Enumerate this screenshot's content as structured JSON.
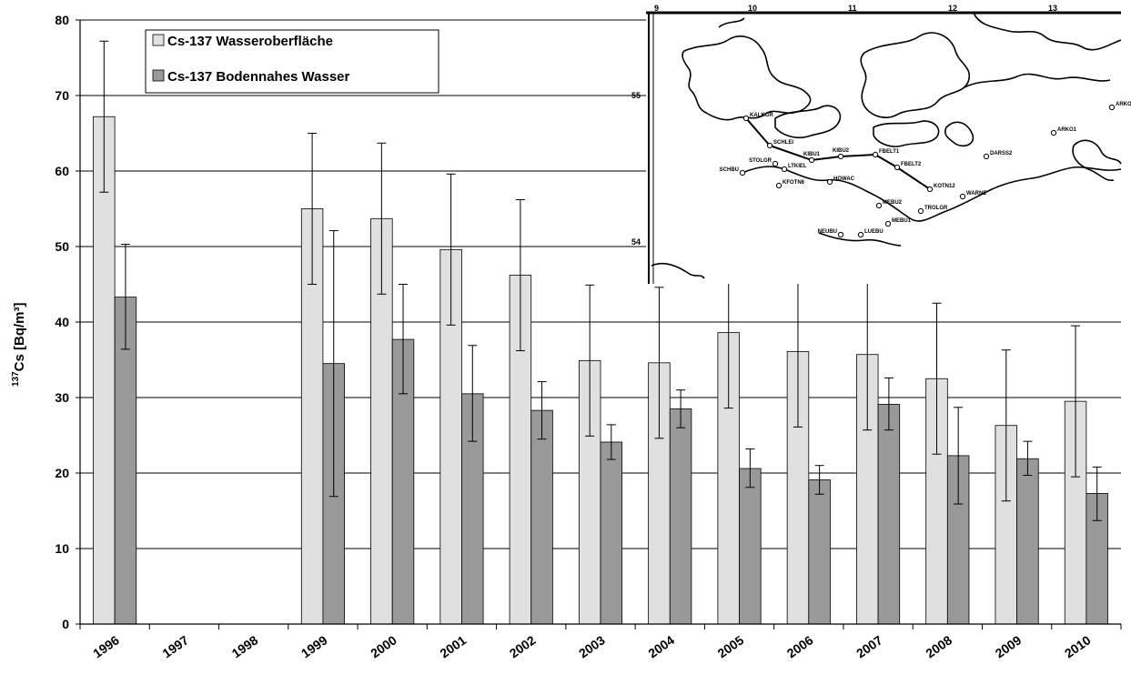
{
  "chart_data": {
    "type": "bar",
    "categories": [
      "1996",
      "1997",
      "1998",
      "1999",
      "2000",
      "2001",
      "2002",
      "2003",
      "2004",
      "2005",
      "2006",
      "2007",
      "2008",
      "2009",
      "2010"
    ],
    "series": [
      {
        "name": "Cs-137 Wasseroberfläche",
        "color": "#e0e0e0",
        "values": [
          67.2,
          null,
          null,
          55.0,
          53.7,
          49.6,
          46.2,
          34.9,
          34.6,
          38.6,
          36.1,
          35.7,
          32.5,
          26.3,
          29.5
        ],
        "err_high": [
          77.2,
          null,
          null,
          65.0,
          63.7,
          59.6,
          56.2,
          44.9,
          44.6,
          48.6,
          46.1,
          45.7,
          42.5,
          36.3,
          39.5
        ],
        "err_low": [
          57.2,
          null,
          null,
          45.0,
          43.7,
          39.6,
          36.2,
          24.9,
          24.6,
          28.6,
          26.1,
          25.7,
          22.5,
          16.3,
          19.5
        ]
      },
      {
        "name": "Cs-137 Bodennahes Wasser",
        "color": "#999999",
        "values": [
          43.3,
          null,
          null,
          34.5,
          37.7,
          30.5,
          28.3,
          24.1,
          28.5,
          20.6,
          19.1,
          29.1,
          22.3,
          21.9,
          17.3
        ],
        "err_high": [
          50.3,
          null,
          null,
          52.1,
          45.0,
          36.9,
          32.1,
          26.4,
          31.0,
          23.2,
          21.0,
          32.6,
          28.7,
          24.2,
          20.8
        ],
        "err_low": [
          36.4,
          null,
          null,
          16.9,
          30.5,
          24.2,
          24.5,
          21.8,
          26.0,
          18.1,
          17.2,
          25.7,
          15.9,
          19.7,
          13.7
        ]
      }
    ],
    "ylim": [
      0,
      80
    ],
    "yticks": [
      "0",
      "10",
      "20",
      "30",
      "40",
      "50",
      "60",
      "70",
      "80"
    ],
    "ylabel_sup": "137",
    "ylabel": "Cs [Bq/m³]",
    "grid": true,
    "legend_placement": "top-left"
  },
  "inset_map": {
    "lon_ticks": [
      "9",
      "10",
      "11",
      "12",
      "13"
    ],
    "lat_ticks": [
      "55",
      "54"
    ],
    "stations": [
      "KALKGR",
      "SCHLEI",
      "STOLGR",
      "KIBU1",
      "KIBU2",
      "FBELT1",
      "FBELT2",
      "KOTN12",
      "LTKIEL",
      "KFOTN6",
      "HOWAC",
      "MEBU2",
      "MEBU1",
      "TROLGR",
      "WARNE",
      "NEUBU",
      "LUEBU",
      "DARSS2",
      "ARKO1",
      "ARKO2",
      "SCHBU"
    ]
  }
}
